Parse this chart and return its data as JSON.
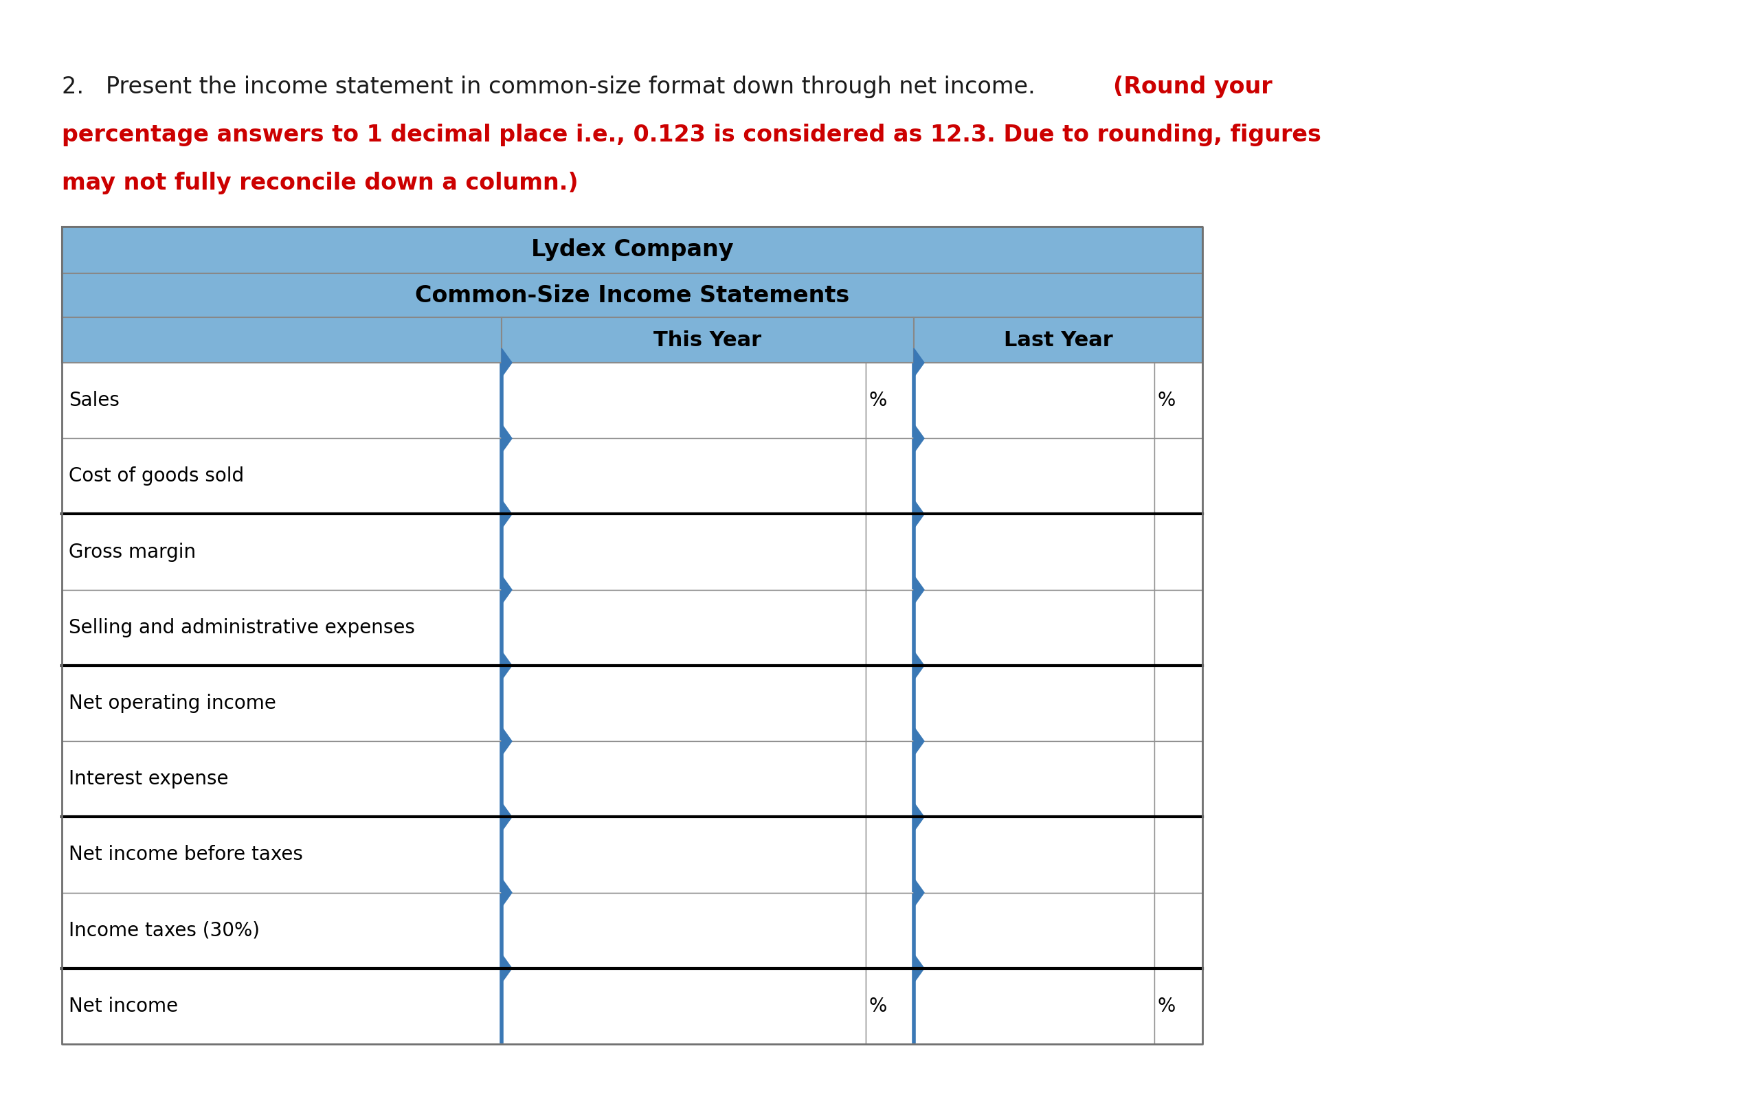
{
  "title_line1": "Lydex Company",
  "title_line2": "Common-Size Income Statements",
  "col_header1": "This Year",
  "col_header2": "Last Year",
  "rows": [
    "Sales",
    "Cost of goods sold",
    "Gross margin",
    "Selling and administrative expenses",
    "Net operating income",
    "Interest expense",
    "Net income before taxes",
    "Income taxes (30%)",
    "Net income"
  ],
  "show_percent_rows": [
    0,
    8
  ],
  "header_bg_color": "#7EB3D8",
  "blue_input_border": "#3A78B5",
  "thick_border_after_rows": [
    1,
    3,
    5,
    7
  ],
  "bg_color": "#FFFFFF",
  "font_family": "DejaVu Sans",
  "instr_black": "2.  Present the income statement in common-size format down through net income. ",
  "instr_red_line1": "(Round your",
  "instr_red_line2": "percentage answers to 1 decimal place i.e., 0.123 is considered as 12.3. Due to rounding, figures",
  "instr_red_line3": "may not fully reconcile down a column.)"
}
